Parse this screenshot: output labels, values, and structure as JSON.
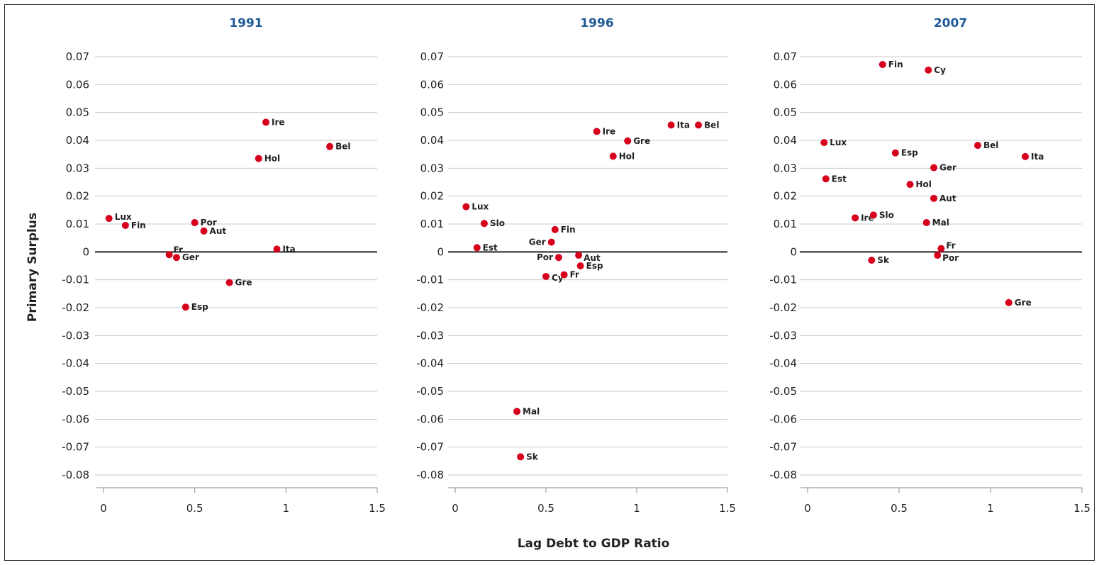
{
  "chart_data": {
    "type": "scatter",
    "xlabel": "Lag Debt to GDP Ratio",
    "ylabel": "Primary Surplus",
    "ylim": [
      -0.085,
      0.072
    ],
    "xlim": [
      -0.02,
      1.55
    ],
    "yticks": [
      0.07,
      0.06,
      0.05,
      0.04,
      0.03,
      0.02,
      0.01,
      0,
      -0.01,
      -0.02,
      -0.03,
      -0.04,
      -0.05,
      -0.06,
      -0.07,
      -0.08
    ],
    "ytick_labels": [
      "0.07",
      "0.06",
      "0.05",
      "0.04",
      "0.03",
      "0.02",
      "0.01",
      "0",
      "-0.01",
      "-0.02",
      "-0.03",
      "-0.04",
      "-0.05",
      "-0.06",
      "-0.07",
      "-0.08"
    ],
    "xticks": [
      0,
      0.5,
      1,
      1.5
    ],
    "xtick_labels": [
      "0",
      "0.5",
      "1",
      "1.5"
    ],
    "grid": true,
    "point_color": "#d6001c",
    "title_color": "#1f5a96",
    "panels": [
      {
        "title": "1991",
        "points": [
          {
            "label": "Lux",
            "x": 0.03,
            "y": 0.012
          },
          {
            "label": "Fin",
            "x": 0.12,
            "y": 0.0095
          },
          {
            "label": "Fr",
            "x": 0.36,
            "y": -0.001
          },
          {
            "label": "Ger",
            "x": 0.4,
            "y": -0.002
          },
          {
            "label": "Por",
            "x": 0.5,
            "y": 0.0105
          },
          {
            "label": "Aut",
            "x": 0.55,
            "y": 0.0075
          },
          {
            "label": "Esp",
            "x": 0.45,
            "y": -0.0198
          },
          {
            "label": "Gre",
            "x": 0.69,
            "y": -0.011
          },
          {
            "label": "Hol",
            "x": 0.85,
            "y": 0.0335
          },
          {
            "label": "Ire",
            "x": 0.89,
            "y": 0.0465
          },
          {
            "label": "Ita",
            "x": 0.95,
            "y": 0.001
          },
          {
            "label": "Bel",
            "x": 1.24,
            "y": 0.0378
          }
        ]
      },
      {
        "title": "1996",
        "points": [
          {
            "label": "Lux",
            "x": 0.06,
            "y": 0.0162
          },
          {
            "label": "Slo",
            "x": 0.16,
            "y": 0.0102
          },
          {
            "label": "Est",
            "x": 0.12,
            "y": 0.0015
          },
          {
            "label": "Fin",
            "x": 0.55,
            "y": 0.008
          },
          {
            "label": "Ger",
            "x": 0.53,
            "y": 0.0035
          },
          {
            "label": "Por",
            "x": 0.57,
            "y": -0.002
          },
          {
            "label": "Aut",
            "x": 0.68,
            "y": -0.0012
          },
          {
            "label": "Esp",
            "x": 0.69,
            "y": -0.005
          },
          {
            "label": "Cy",
            "x": 0.5,
            "y": -0.0088
          },
          {
            "label": "Fr",
            "x": 0.6,
            "y": -0.0082
          },
          {
            "label": "Ire",
            "x": 0.78,
            "y": 0.0432
          },
          {
            "label": "Gre",
            "x": 0.95,
            "y": 0.0398
          },
          {
            "label": "Hol",
            "x": 0.87,
            "y": 0.0343
          },
          {
            "label": "Ita",
            "x": 1.19,
            "y": 0.0455
          },
          {
            "label": "Bel",
            "x": 1.34,
            "y": 0.0455
          },
          {
            "label": "Mal",
            "x": 0.34,
            "y": -0.0572
          },
          {
            "label": "Sk",
            "x": 0.36,
            "y": -0.0735
          }
        ]
      },
      {
        "title": "2007",
        "points": [
          {
            "label": "Fin",
            "x": 0.41,
            "y": 0.0672
          },
          {
            "label": "Cy",
            "x": 0.66,
            "y": 0.0652
          },
          {
            "label": "Lux",
            "x": 0.09,
            "y": 0.0392
          },
          {
            "label": "Esp",
            "x": 0.48,
            "y": 0.0355
          },
          {
            "label": "Bel",
            "x": 0.93,
            "y": 0.0382
          },
          {
            "label": "Ita",
            "x": 1.19,
            "y": 0.0342
          },
          {
            "label": "Ger",
            "x": 0.69,
            "y": 0.0302
          },
          {
            "label": "Est",
            "x": 0.1,
            "y": 0.0262
          },
          {
            "label": "Hol",
            "x": 0.56,
            "y": 0.0242
          },
          {
            "label": "Aut",
            "x": 0.69,
            "y": 0.0192
          },
          {
            "label": "Ire",
            "x": 0.26,
            "y": 0.0122
          },
          {
            "label": "Slo",
            "x": 0.36,
            "y": 0.0132
          },
          {
            "label": "Mal",
            "x": 0.65,
            "y": 0.0105
          },
          {
            "label": "Fr",
            "x": 0.73,
            "y": 0.0012
          },
          {
            "label": "Por",
            "x": 0.71,
            "y": -0.0012
          },
          {
            "label": "Sk",
            "x": 0.35,
            "y": -0.003
          },
          {
            "label": "Gre",
            "x": 1.1,
            "y": -0.0182
          }
        ]
      }
    ]
  }
}
